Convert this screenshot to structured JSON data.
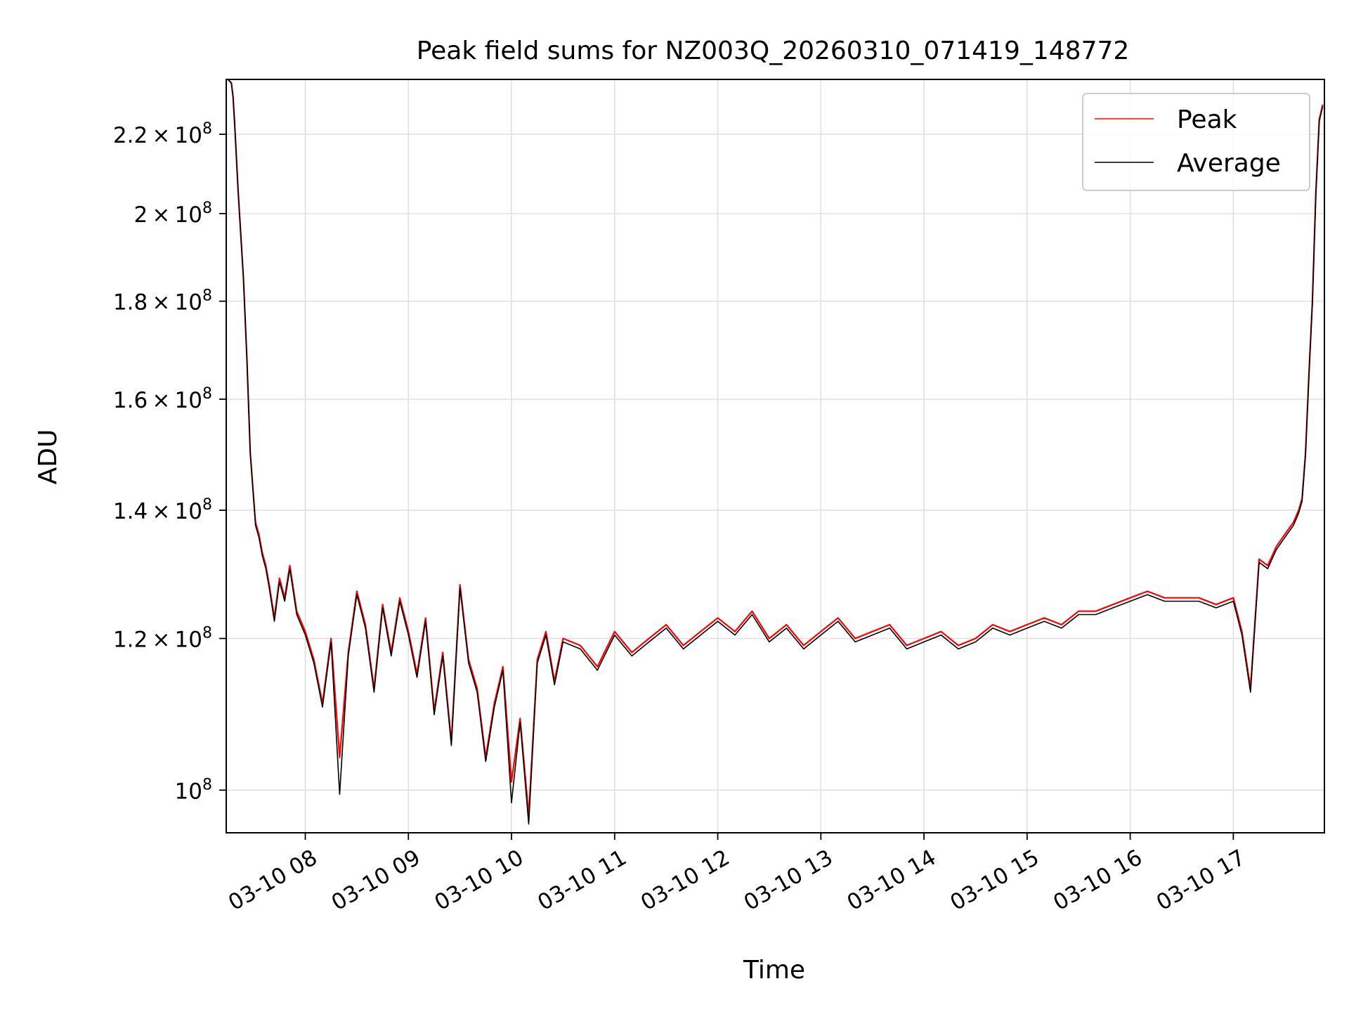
{
  "chart_data": {
    "type": "line",
    "title": "Peak field sums for NZ003Q_20260310_071419_148772",
    "xlabel": "Time",
    "ylabel": "ADU",
    "y_scale": "log",
    "grid": true,
    "legend_position": "upper right",
    "xlim": [
      "2026-03-10 07:14",
      "2026-03-10 17:53"
    ],
    "ylim": [
      95000000,
      235000000
    ],
    "x_ticks": [
      "03-10 08",
      "03-10 09",
      "03-10 10",
      "03-10 11",
      "03-10 12",
      "03-10 13",
      "03-10 14",
      "03-10 15",
      "03-10 16",
      "03-10 17"
    ],
    "y_ticks": [
      {
        "value": 100000000,
        "mantissa": "",
        "exp": "8"
      },
      {
        "value": 120000000,
        "mantissa": "1.2",
        "exp": "8"
      },
      {
        "value": 140000000,
        "mantissa": "1.4",
        "exp": "8"
      },
      {
        "value": 160000000,
        "mantissa": "1.6",
        "exp": "8"
      },
      {
        "value": 180000000,
        "mantissa": "1.8",
        "exp": "8"
      },
      {
        "value": 200000000,
        "mantissa": "2",
        "exp": "8"
      },
      {
        "value": 220000000,
        "mantissa": "2.2",
        "exp": "8"
      }
    ],
    "series": [
      {
        "name": "Peak",
        "color": "#ff0000",
        "x": [
          "07:15",
          "07:17",
          "07:18",
          "07:19",
          "07:21",
          "07:24",
          "07:26",
          "07:28",
          "07:31",
          "07:33",
          "07:35",
          "07:37",
          "07:39",
          "07:42",
          "07:45",
          "07:48",
          "07:51",
          "07:55",
          "08:00",
          "08:05",
          "08:10",
          "08:15",
          "08:20",
          "08:25",
          "08:30",
          "08:35",
          "08:40",
          "08:45",
          "08:50",
          "08:55",
          "09:00",
          "09:05",
          "09:10",
          "09:15",
          "09:20",
          "09:25",
          "09:30",
          "09:35",
          "09:40",
          "09:45",
          "09:50",
          "09:55",
          "10:00",
          "10:05",
          "10:10",
          "10:15",
          "10:20",
          "10:25",
          "10:30",
          "10:40",
          "10:50",
          "11:00",
          "11:10",
          "11:20",
          "11:30",
          "11:40",
          "11:50",
          "12:00",
          "12:10",
          "12:20",
          "12:30",
          "12:40",
          "12:50",
          "13:00",
          "13:10",
          "13:20",
          "13:30",
          "13:40",
          "13:50",
          "14:00",
          "14:10",
          "14:20",
          "14:30",
          "14:40",
          "14:50",
          "15:00",
          "15:10",
          "15:20",
          "15:30",
          "15:40",
          "15:50",
          "16:00",
          "16:10",
          "16:20",
          "16:30",
          "16:40",
          "16:50",
          "17:00",
          "17:05",
          "17:10",
          "17:15",
          "17:20",
          "17:25",
          "17:30",
          "17:35",
          "17:38",
          "17:40",
          "17:42",
          "17:44",
          "17:46",
          "17:48",
          "17:50",
          "17:52"
        ],
        "values": [
          235000000,
          234000000,
          230000000,
          222000000,
          205000000,
          185000000,
          168000000,
          150000000,
          138000000,
          136000000,
          133000000,
          131000000,
          128000000,
          123000000,
          129000000,
          126000000,
          131000000,
          124000000,
          121000000,
          117000000,
          111000000,
          120000000,
          104000000,
          118000000,
          127000000,
          122000000,
          113000000,
          125000000,
          118000000,
          126000000,
          121000000,
          115000000,
          123000000,
          110000000,
          118000000,
          106000000,
          128000000,
          117000000,
          113000000,
          104000000,
          111000000,
          116000000,
          101000000,
          109000000,
          97000000,
          117000000,
          121000000,
          114000000,
          120000000,
          119000000,
          116000000,
          121000000,
          118000000,
          120000000,
          122000000,
          119000000,
          121000000,
          123000000,
          121000000,
          124000000,
          120000000,
          122000000,
          119000000,
          121000000,
          123000000,
          120000000,
          121000000,
          122000000,
          119000000,
          120000000,
          121000000,
          119000000,
          120000000,
          122000000,
          121000000,
          122000000,
          123000000,
          122000000,
          124000000,
          124000000,
          125000000,
          126000000,
          127000000,
          126000000,
          126000000,
          126000000,
          125000000,
          126000000,
          121000000,
          113000000,
          132000000,
          131000000,
          134000000,
          136000000,
          138000000,
          140000000,
          142000000,
          150000000,
          165000000,
          180000000,
          205000000,
          224000000,
          228000000
        ]
      },
      {
        "name": "Average",
        "color": "#000000",
        "x": [
          "07:15",
          "07:17",
          "07:18",
          "07:19",
          "07:21",
          "07:24",
          "07:26",
          "07:28",
          "07:31",
          "07:33",
          "07:35",
          "07:37",
          "07:39",
          "07:42",
          "07:45",
          "07:48",
          "07:51",
          "07:55",
          "08:00",
          "08:05",
          "08:10",
          "08:15",
          "08:20",
          "08:25",
          "08:30",
          "08:35",
          "08:40",
          "08:45",
          "08:50",
          "08:55",
          "09:00",
          "09:05",
          "09:10",
          "09:15",
          "09:20",
          "09:25",
          "09:30",
          "09:35",
          "09:40",
          "09:45",
          "09:50",
          "09:55",
          "10:00",
          "10:05",
          "10:10",
          "10:15",
          "10:20",
          "10:25",
          "10:30",
          "10:40",
          "10:50",
          "11:00",
          "11:10",
          "11:20",
          "11:30",
          "11:40",
          "11:50",
          "12:00",
          "12:10",
          "12:20",
          "12:30",
          "12:40",
          "12:50",
          "13:00",
          "13:10",
          "13:20",
          "13:30",
          "13:40",
          "13:50",
          "14:00",
          "14:10",
          "14:20",
          "14:30",
          "14:40",
          "14:50",
          "15:00",
          "15:10",
          "15:20",
          "15:30",
          "15:40",
          "15:50",
          "16:00",
          "16:10",
          "16:20",
          "16:30",
          "16:40",
          "16:50",
          "17:00",
          "17:05",
          "17:10",
          "17:15",
          "17:20",
          "17:25",
          "17:30",
          "17:35",
          "17:38",
          "17:40",
          "17:42",
          "17:44",
          "17:46",
          "17:48",
          "17:50",
          "17:52"
        ],
        "values": [
          235000000,
          234000000,
          230000000,
          222000000,
          205000000,
          185000000,
          168000000,
          150000000,
          137500000,
          135500000,
          132500000,
          130500000,
          127500000,
          122500000,
          128500000,
          125500000,
          130500000,
          123500000,
          120500000,
          116500000,
          110500000,
          119500000,
          99500000,
          117500000,
          126500000,
          121500000,
          112500000,
          124500000,
          117500000,
          125500000,
          120500000,
          114500000,
          122500000,
          109500000,
          117500000,
          105500000,
          127500000,
          116500000,
          112500000,
          103500000,
          110500000,
          115500000,
          98500000,
          108500000,
          96000000,
          116500000,
          120500000,
          113500000,
          119500000,
          118500000,
          115500000,
          120500000,
          117500000,
          119500000,
          121500000,
          118500000,
          120500000,
          122500000,
          120500000,
          123500000,
          119500000,
          121500000,
          118500000,
          120500000,
          122500000,
          119500000,
          120500000,
          121500000,
          118500000,
          119500000,
          120500000,
          118500000,
          119500000,
          121500000,
          120500000,
          121500000,
          122500000,
          121500000,
          123500000,
          123500000,
          124500000,
          125500000,
          126500000,
          125500000,
          125500000,
          125500000,
          124500000,
          125500000,
          120500000,
          112500000,
          131500000,
          130500000,
          133500000,
          135500000,
          137500000,
          139500000,
          141500000,
          149500000,
          164500000,
          179500000,
          204500000,
          223500000,
          227500000
        ]
      }
    ]
  }
}
